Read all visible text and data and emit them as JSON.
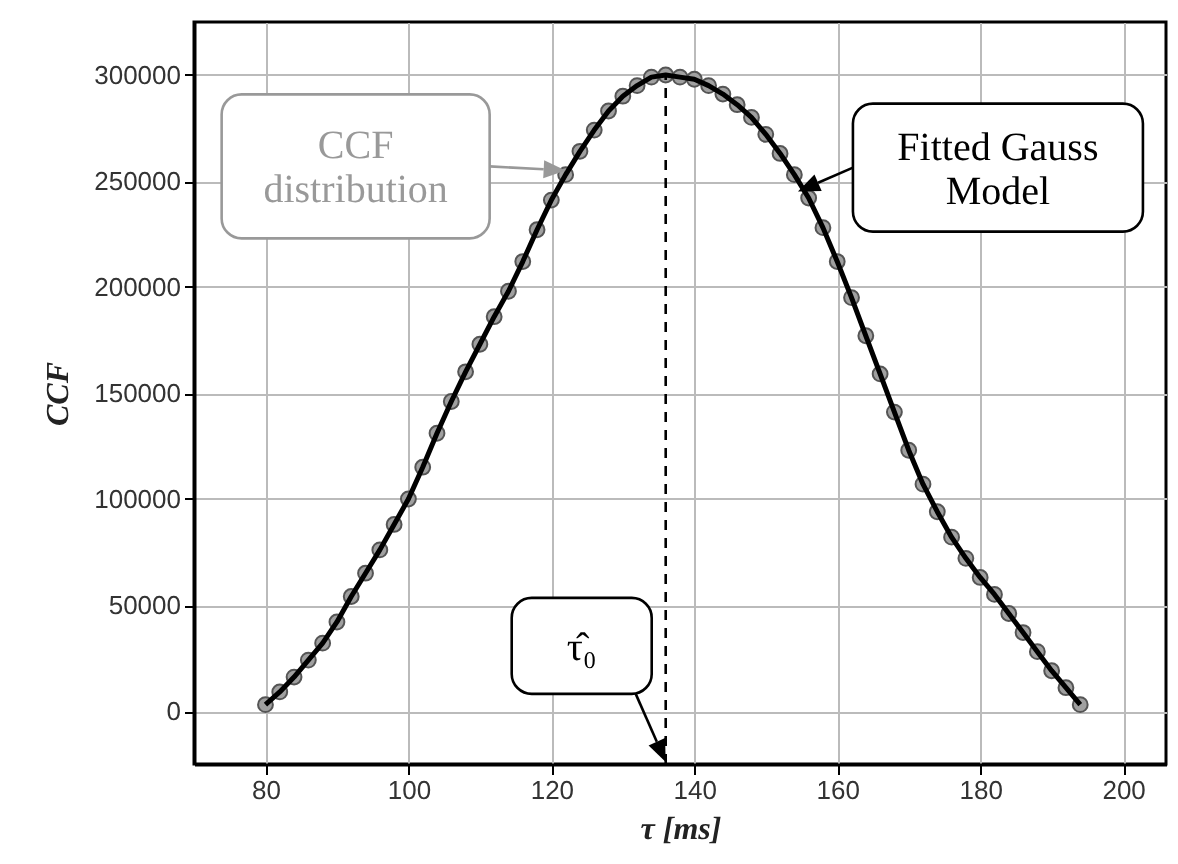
{
  "chart_data": {
    "type": "scatter",
    "xlabel": "τ [ms]",
    "ylabel": "CCF",
    "x": [
      80,
      82,
      84,
      86,
      88,
      90,
      92,
      94,
      96,
      98,
      100,
      102,
      104,
      106,
      108,
      110,
      112,
      114,
      116,
      118,
      120,
      122,
      124,
      126,
      128,
      130,
      132,
      134,
      136,
      138,
      140,
      142,
      144,
      146,
      148,
      150,
      152,
      154,
      156,
      158,
      160,
      162,
      164,
      166,
      168,
      170,
      172,
      174,
      176,
      178,
      180,
      182,
      184,
      186,
      188,
      190,
      192,
      194
    ],
    "series": [
      {
        "color": "#a0a0a0",
        "marker": "circle",
        "values": [
          3000,
          9000,
          16000,
          24000,
          32000,
          42000,
          54000,
          65000,
          76000,
          88000,
          100000,
          115000,
          131000,
          146000,
          160000,
          173000,
          186000,
          198000,
          212000,
          227000,
          241000,
          253000,
          264000,
          274000,
          283000,
          290000,
          295000,
          299000,
          300000,
          299000,
          298000,
          295000,
          291000,
          286000,
          280000,
          272000,
          263000,
          253000,
          242000,
          228000,
          212000,
          195000,
          177000,
          159000,
          141000,
          123000,
          107000,
          94000,
          82000,
          72000,
          63000,
          55000,
          46000,
          37000,
          28000,
          19000,
          11000,
          3000
        ]
      },
      {
        "type": "line",
        "color": "#000000",
        "values": [
          3000,
          9000,
          16000,
          24000,
          32000,
          42000,
          54000,
          65000,
          76000,
          88000,
          100000,
          115000,
          131000,
          146000,
          160000,
          173000,
          186000,
          198000,
          212000,
          227000,
          241000,
          253000,
          264000,
          274000,
          283000,
          290000,
          295000,
          299000,
          300000,
          299000,
          298000,
          295000,
          291000,
          286000,
          280000,
          272000,
          263000,
          253000,
          242000,
          228000,
          212000,
          195000,
          177000,
          159000,
          141000,
          123000,
          107000,
          94000,
          82000,
          72000,
          63000,
          55000,
          46000,
          37000,
          28000,
          19000,
          11000,
          3000
        ]
      }
    ],
    "xlim": [
      70,
      206
    ],
    "xticks": [
      80,
      100,
      120,
      140,
      160,
      180,
      200
    ],
    "ylim": [
      -25000,
      325000
    ],
    "yticks": [
      0,
      50000,
      100000,
      150000,
      200000,
      250000,
      300000
    ],
    "grid": true,
    "ref_lines": [
      {
        "axis": "x",
        "value": 136,
        "color": "#000000",
        "line_style": "dashed"
      }
    ],
    "annotations": [
      {
        "text": "CCF\ndistribution",
        "x": 122,
        "y": 255000
      },
      {
        "text": "Fitted Gauss\nModel",
        "x": 154.5,
        "y": 245000
      },
      {
        "text": "τ̂₀",
        "x": 136,
        "y": -24000
      }
    ]
  }
}
